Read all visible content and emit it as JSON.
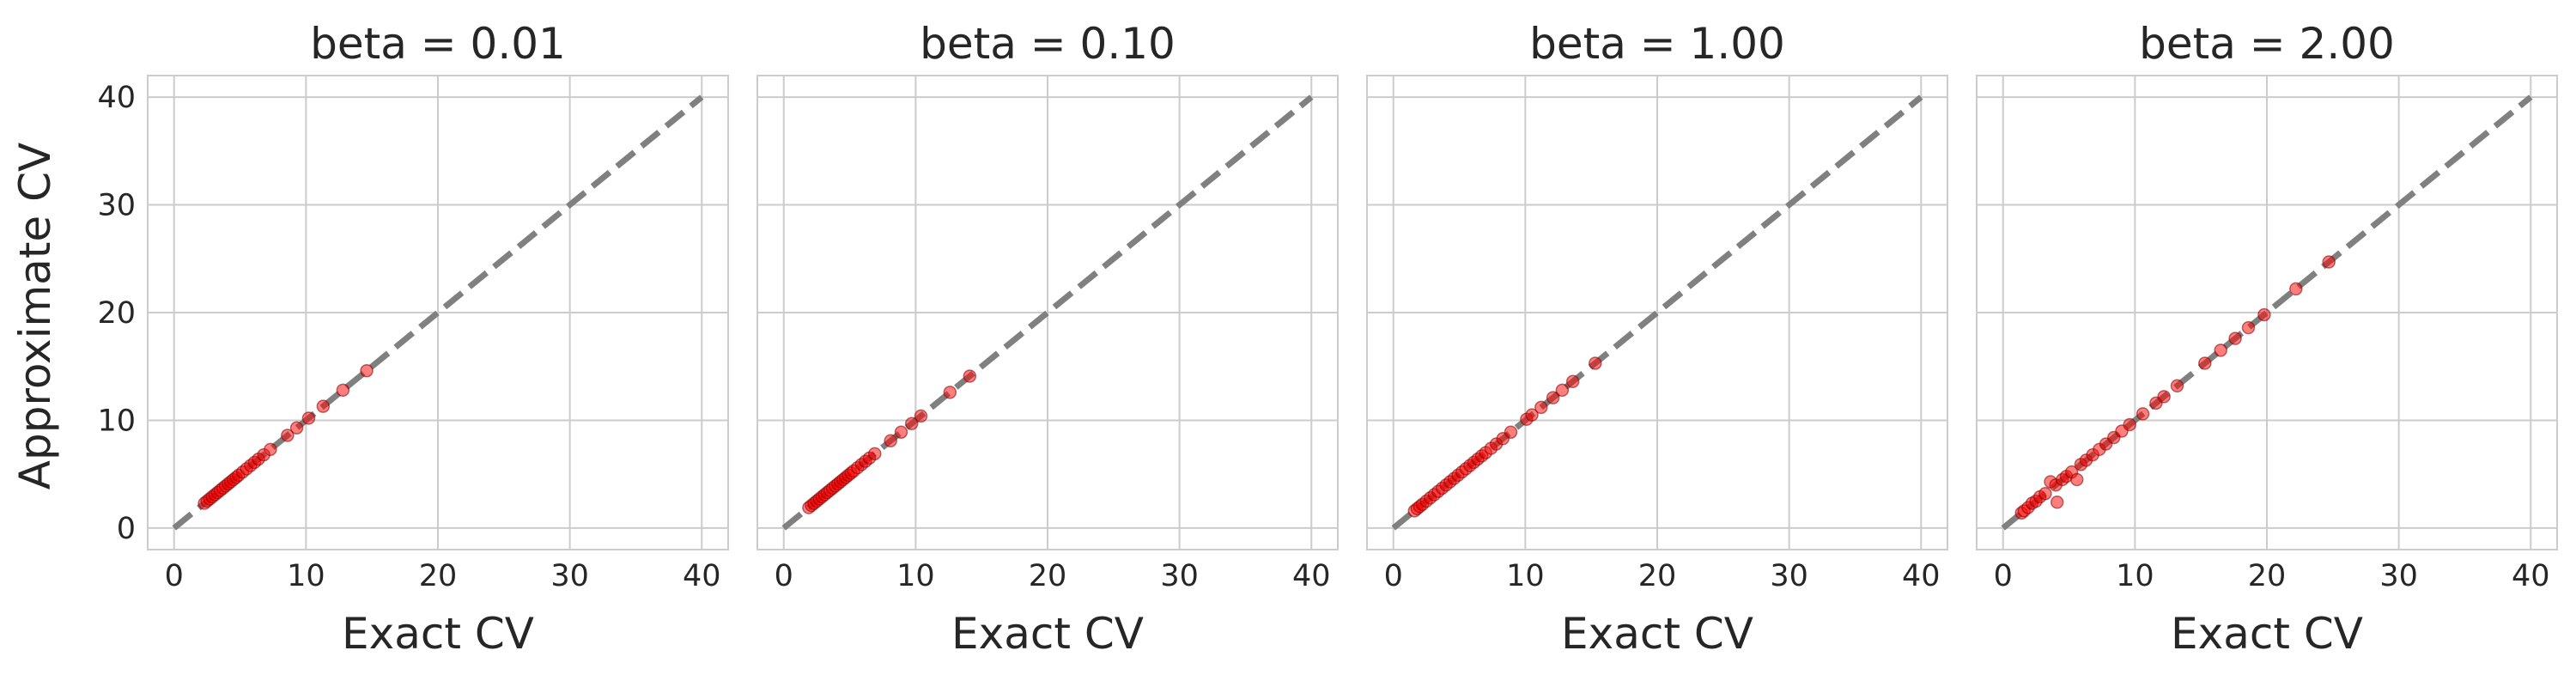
{
  "chart_data": [
    {
      "type": "scatter",
      "title": "beta = 0.01",
      "xlabel": "Exact CV",
      "ylabel": "Approximate CV",
      "xlim": [
        -2,
        42
      ],
      "ylim": [
        -2,
        42
      ],
      "xticks": [
        0,
        10,
        20,
        30,
        40
      ],
      "yticks": [
        0,
        10,
        20,
        30,
        40
      ],
      "grid": true,
      "reference_line": {
        "style": "dashed",
        "color": "#808080",
        "from": [
          0,
          0
        ],
        "to": [
          40,
          40
        ]
      },
      "points": {
        "x": [
          2.3,
          2.5,
          2.7,
          2.9,
          3.1,
          3.3,
          3.5,
          3.7,
          3.9,
          4.1,
          4.3,
          4.5,
          4.7,
          4.9,
          5.2,
          5.5,
          5.8,
          6.1,
          6.4,
          6.8,
          7.3,
          8.6,
          9.3,
          10.2,
          11.3,
          12.8,
          14.6
        ],
        "y": [
          2.3,
          2.5,
          2.7,
          2.9,
          3.1,
          3.3,
          3.5,
          3.7,
          3.9,
          4.1,
          4.3,
          4.5,
          4.7,
          4.9,
          5.2,
          5.5,
          5.8,
          6.1,
          6.4,
          6.8,
          7.3,
          8.6,
          9.3,
          10.2,
          11.3,
          12.8,
          14.6
        ]
      },
      "point_color": "#ff0000"
    },
    {
      "type": "scatter",
      "title": "beta = 0.10",
      "xlabel": "Exact CV",
      "ylabel": "",
      "xlim": [
        -2,
        42
      ],
      "ylim": [
        -2,
        42
      ],
      "xticks": [
        0,
        10,
        20,
        30,
        40
      ],
      "yticks": [
        0,
        10,
        20,
        30,
        40
      ],
      "grid": true,
      "reference_line": {
        "style": "dashed",
        "color": "#808080",
        "from": [
          0,
          0
        ],
        "to": [
          40,
          40
        ]
      },
      "points": {
        "x": [
          1.9,
          2.1,
          2.3,
          2.5,
          2.7,
          2.9,
          3.1,
          3.3,
          3.5,
          3.7,
          3.9,
          4.1,
          4.3,
          4.5,
          4.7,
          4.9,
          5.1,
          5.3,
          5.6,
          5.9,
          6.2,
          6.5,
          6.9,
          8.1,
          8.9,
          9.7,
          10.4,
          12.6,
          14.1
        ],
        "y": [
          1.9,
          2.1,
          2.3,
          2.5,
          2.7,
          2.9,
          3.1,
          3.3,
          3.5,
          3.7,
          3.9,
          4.1,
          4.3,
          4.5,
          4.7,
          4.9,
          5.1,
          5.3,
          5.6,
          5.9,
          6.2,
          6.5,
          6.9,
          8.1,
          8.9,
          9.7,
          10.4,
          12.6,
          14.1
        ]
      },
      "point_color": "#ff0000"
    },
    {
      "type": "scatter",
      "title": "beta = 1.00",
      "xlabel": "Exact CV",
      "ylabel": "",
      "xlim": [
        -2,
        42
      ],
      "ylim": [
        -2,
        42
      ],
      "xticks": [
        0,
        10,
        20,
        30,
        40
      ],
      "yticks": [
        0,
        10,
        20,
        30,
        40
      ],
      "grid": true,
      "reference_line": {
        "style": "dashed",
        "color": "#808080",
        "from": [
          0,
          0
        ],
        "to": [
          40,
          40
        ]
      },
      "points": {
        "x": [
          1.6,
          1.8,
          2.0,
          2.2,
          2.5,
          2.8,
          3.1,
          3.4,
          3.7,
          4.0,
          4.3,
          4.6,
          4.9,
          5.2,
          5.5,
          5.8,
          6.1,
          6.4,
          6.7,
          7.0,
          7.4,
          7.8,
          8.3,
          8.9,
          10.1,
          10.5,
          11.2,
          12.1,
          12.8,
          13.6,
          15.3
        ],
        "y": [
          1.6,
          1.8,
          2.0,
          2.2,
          2.5,
          2.8,
          3.1,
          3.4,
          3.7,
          4.0,
          4.3,
          4.6,
          4.9,
          5.2,
          5.5,
          5.8,
          6.1,
          6.4,
          6.7,
          7.0,
          7.4,
          7.8,
          8.3,
          8.9,
          10.1,
          10.5,
          11.2,
          12.1,
          12.8,
          13.6,
          15.3
        ]
      },
      "point_color": "#ff0000"
    },
    {
      "type": "scatter",
      "title": "beta = 2.00",
      "xlabel": "Exact CV",
      "ylabel": "",
      "xlim": [
        -2,
        42
      ],
      "ylim": [
        -2,
        42
      ],
      "xticks": [
        0,
        10,
        20,
        30,
        40
      ],
      "yticks": [
        0,
        10,
        20,
        30,
        40
      ],
      "grid": true,
      "reference_line": {
        "style": "dashed",
        "color": "#808080",
        "from": [
          0,
          0
        ],
        "to": [
          40,
          40
        ]
      },
      "points": {
        "x": [
          1.4,
          1.6,
          1.9,
          2.2,
          2.5,
          2.8,
          3.2,
          3.6,
          4.0,
          4.1,
          4.5,
          4.8,
          5.2,
          5.6,
          5.9,
          6.3,
          6.8,
          7.3,
          7.8,
          8.4,
          9.0,
          9.6,
          10.6,
          11.6,
          12.2,
          13.2,
          15.3,
          16.5,
          17.6,
          18.6,
          19.8,
          22.2,
          24.7
        ],
        "y": [
          1.4,
          1.6,
          1.9,
          2.3,
          2.5,
          2.9,
          3.2,
          4.3,
          4.0,
          2.4,
          4.5,
          4.8,
          5.2,
          4.5,
          5.9,
          6.3,
          6.8,
          7.3,
          7.8,
          8.4,
          9.0,
          9.6,
          10.6,
          11.6,
          12.2,
          13.2,
          15.3,
          16.5,
          17.6,
          18.6,
          19.8,
          22.2,
          24.7
        ]
      },
      "point_color": "#ff0000"
    }
  ]
}
